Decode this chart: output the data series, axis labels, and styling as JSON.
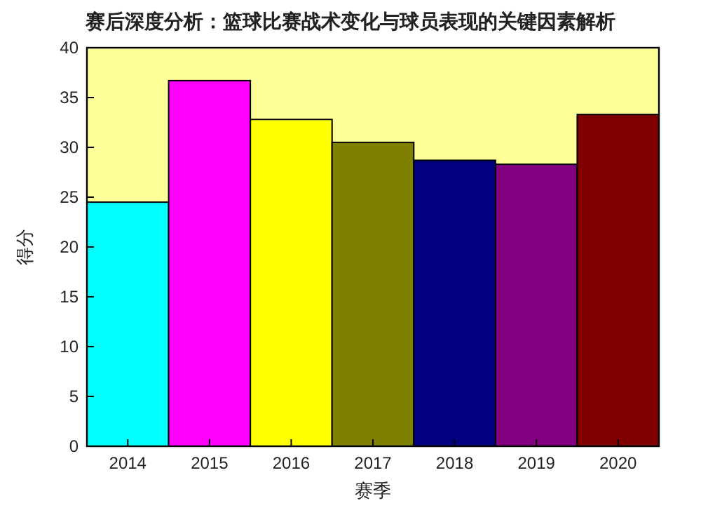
{
  "chart_data": {
    "type": "bar",
    "title": "赛后深度分析：篮球比赛战术变化与球员表现的关键因素解析",
    "xlabel": "赛季",
    "ylabel": "得分",
    "categories": [
      "2014",
      "2015",
      "2016",
      "2017",
      "2018",
      "2019",
      "2020"
    ],
    "values": [
      24.5,
      36.7,
      32.8,
      30.5,
      28.7,
      28.3,
      33.3
    ],
    "colors": [
      "#00ffff",
      "#ff00ff",
      "#ffff00",
      "#808000",
      "#000080",
      "#800080",
      "#800000"
    ],
    "ylim": [
      0,
      40
    ],
    "yticks": [
      0,
      5,
      10,
      15,
      20,
      25,
      30,
      35,
      40
    ],
    "grid": false
  }
}
